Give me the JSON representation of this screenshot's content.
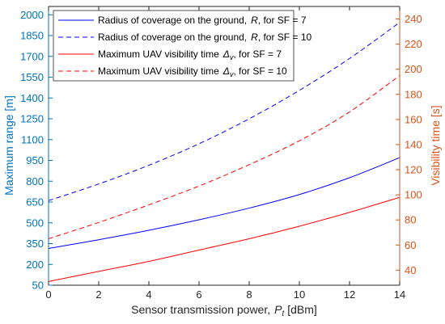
{
  "chart_data": {
    "type": "line",
    "x": [
      0,
      2,
      4,
      6,
      8,
      10,
      12,
      14
    ],
    "xlabel": {
      "prefix": "Sensor transmission power,",
      "symbol": "P",
      "sub": "t",
      "unit": "[dBm]"
    },
    "xlim": [
      0,
      14
    ],
    "xticks": [
      0,
      2,
      4,
      6,
      8,
      10,
      12,
      14
    ],
    "grid": false,
    "legend_position": "top-left",
    "y_left": {
      "label": "Maximum range [m]",
      "lim": [
        50,
        2060
      ],
      "ticks": [
        50,
        200,
        350,
        500,
        650,
        800,
        950,
        1100,
        1250,
        1400,
        1550,
        1700,
        1850,
        2000
      ],
      "color": "#0072bd"
    },
    "y_right": {
      "label": "Visibility time [s]",
      "lim": [
        28,
        250
      ],
      "ticks": [
        40,
        60,
        80,
        100,
        120,
        140,
        160,
        180,
        200,
        220,
        240
      ],
      "color": "#d95319"
    },
    "series": [
      {
        "name": {
          "text": "Radius of coverage on the ground,",
          "symbol": "R",
          "sub": "",
          "suffix": ", for SF = 7"
        },
        "axis": "left",
        "color": "#0000ff",
        "dash": "solid",
        "values": [
          315,
          378,
          446,
          522,
          606,
          704,
          825,
          970
        ]
      },
      {
        "name": {
          "text": "Radius of coverage on the ground,",
          "symbol": "R",
          "sub": "",
          "suffix": ", for SF = 10"
        },
        "axis": "left",
        "color": "#0000ff",
        "dash": "dashed",
        "values": [
          660,
          780,
          915,
          1070,
          1250,
          1455,
          1685,
          1945
        ]
      },
      {
        "name": {
          "text": "Maximum UAV visibility time",
          "symbol": "Δ",
          "sub": "v",
          "suffix": ", for SF = 7"
        },
        "axis": "right",
        "color": "#ff0000",
        "dash": "solid",
        "values": [
          31,
          39,
          47,
          56,
          65,
          75,
          86,
          98
        ]
      },
      {
        "name": {
          "text": "Maximum UAV visibility time",
          "symbol": "Δ",
          "sub": "v",
          "suffix": ", for SF = 10"
        },
        "axis": "right",
        "color": "#ff0000",
        "dash": "dashed",
        "values": [
          65,
          78,
          92,
          107,
          124,
          143,
          166,
          195
        ]
      }
    ]
  }
}
